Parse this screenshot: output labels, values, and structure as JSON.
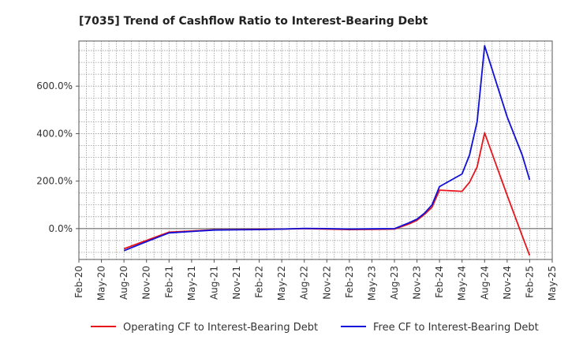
{
  "chart_data": {
    "type": "line",
    "title": "[7035]  Trend of Cashflow Ratio to Interest-Bearing Debt",
    "xlabel": "",
    "ylabel": "",
    "x_ticks": [
      "Feb-20",
      "May-20",
      "Aug-20",
      "Nov-20",
      "Feb-21",
      "May-21",
      "Aug-21",
      "Nov-21",
      "Feb-22",
      "May-22",
      "Aug-22",
      "Nov-22",
      "Feb-23",
      "May-23",
      "Aug-23",
      "Nov-23",
      "Feb-24",
      "May-24",
      "Aug-24",
      "Nov-24",
      "Feb-25",
      "May-25"
    ],
    "y_ticks": [
      {
        "value": 0,
        "label": "0.0%"
      },
      {
        "value": 200,
        "label": "200.0%"
      },
      {
        "value": 400,
        "label": "400.0%"
      },
      {
        "value": 600,
        "label": "600.0%"
      }
    ],
    "ylim": [
      -130,
      790
    ],
    "grid": true,
    "legend_position": "bottom",
    "series": [
      {
        "name": "Operating CF to Interest-Bearing Debt",
        "color": "#e8141b",
        "x": [
          "Aug-20",
          "Nov-20",
          "Feb-21",
          "May-21",
          "Aug-21",
          "Nov-21",
          "Feb-22",
          "May-22",
          "Aug-22",
          "Nov-22",
          "Feb-23",
          "May-23",
          "Aug-23",
          "Oct-23",
          "Nov-23",
          "Dec-23",
          "Jan-24",
          "Feb-24",
          "May-24",
          "Jun-24",
          "Jul-24",
          "Aug-24",
          "Nov-24",
          "Jan-25",
          "Feb-25"
        ],
        "values": [
          -85,
          -50,
          -15,
          -10,
          -5,
          -4,
          -3,
          -2,
          0,
          -2,
          -4,
          -3,
          -2,
          20,
          35,
          60,
          90,
          162,
          157,
          195,
          260,
          403,
          140,
          -30,
          -113
        ]
      },
      {
        "name": "Free CF to Interest-Bearing Debt",
        "color": "#1010d8",
        "x": [
          "Aug-20",
          "Nov-20",
          "Feb-21",
          "May-21",
          "Aug-21",
          "Nov-21",
          "Feb-22",
          "May-22",
          "Aug-22",
          "Nov-22",
          "Feb-23",
          "May-23",
          "Aug-23",
          "Oct-23",
          "Nov-23",
          "Dec-23",
          "Jan-24",
          "Feb-24",
          "May-24",
          "Jun-24",
          "Jul-24",
          "Aug-24",
          "Nov-24",
          "Jan-25",
          "Feb-25"
        ],
        "values": [
          -93,
          -55,
          -18,
          -12,
          -6,
          -5,
          -4,
          -2,
          1,
          0,
          -2,
          -1,
          0,
          25,
          40,
          65,
          100,
          177,
          230,
          310,
          450,
          770,
          470,
          310,
          205
        ]
      }
    ]
  }
}
